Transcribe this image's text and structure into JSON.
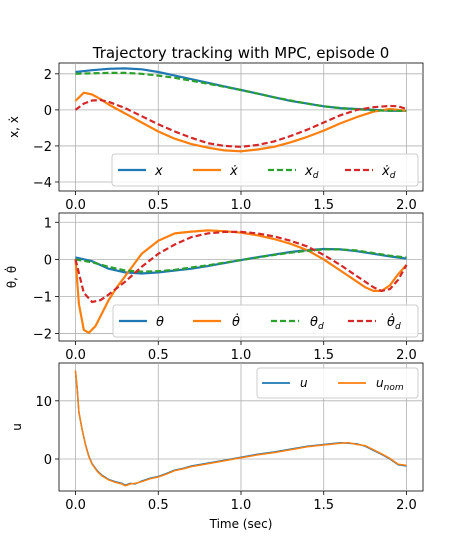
{
  "title": "Trajectory tracking with MPC, episode 0",
  "chart_data": [
    {
      "type": "line",
      "title": "Trajectory tracking with MPC, episode 0",
      "xlabel": "",
      "ylabel": "x, ẋ",
      "xlim": [
        -0.1,
        2.1
      ],
      "ylim": [
        -4.5,
        2.6
      ],
      "xticks": [
        0.0,
        0.5,
        1.0,
        1.5,
        2.0
      ],
      "xtick_labels": [
        "0.0",
        "0.5",
        "1.0",
        "1.5",
        "2.0"
      ],
      "yticks": [
        -4,
        -2,
        0,
        2
      ],
      "ytick_labels": [
        "−4",
        "−2",
        "0",
        "2"
      ],
      "grid": true,
      "legend_position": "lower-right",
      "series": [
        {
          "name": "x",
          "color": "#1f77b4",
          "dash": "solid",
          "x": [
            0,
            0.1,
            0.2,
            0.3,
            0.4,
            0.5,
            0.6,
            0.7,
            0.8,
            0.9,
            1.0,
            1.1,
            1.2,
            1.3,
            1.4,
            1.5,
            1.6,
            1.7,
            1.8,
            1.9,
            2.0
          ],
          "y": [
            2.1,
            2.2,
            2.28,
            2.3,
            2.25,
            2.1,
            1.9,
            1.7,
            1.5,
            1.3,
            1.1,
            0.9,
            0.7,
            0.5,
            0.35,
            0.2,
            0.1,
            0.05,
            0.0,
            -0.05,
            -0.05
          ]
        },
        {
          "name": "ẋ",
          "color": "#ff7f0e",
          "dash": "solid",
          "x": [
            0,
            0.05,
            0.1,
            0.15,
            0.2,
            0.3,
            0.4,
            0.5,
            0.6,
            0.7,
            0.8,
            0.9,
            1.0,
            1.1,
            1.2,
            1.3,
            1.4,
            1.5,
            1.6,
            1.7,
            1.8,
            1.9,
            2.0
          ],
          "y": [
            0.5,
            0.95,
            0.85,
            0.6,
            0.3,
            -0.2,
            -0.7,
            -1.2,
            -1.6,
            -1.9,
            -2.1,
            -2.25,
            -2.3,
            -2.2,
            -2.05,
            -1.8,
            -1.5,
            -1.15,
            -0.75,
            -0.4,
            -0.1,
            0.05,
            -0.05
          ]
        },
        {
          "name": "x_d",
          "color": "#2ca02c",
          "dash": "dashed",
          "x": [
            0,
            0.1,
            0.2,
            0.3,
            0.4,
            0.5,
            0.6,
            0.7,
            0.8,
            0.9,
            1.0,
            1.1,
            1.2,
            1.3,
            1.4,
            1.5,
            1.6,
            1.7,
            1.8,
            1.9,
            2.0
          ],
          "y": [
            2.0,
            2.03,
            2.05,
            2.05,
            2.0,
            1.9,
            1.78,
            1.62,
            1.45,
            1.28,
            1.1,
            0.9,
            0.7,
            0.52,
            0.35,
            0.2,
            0.1,
            0.03,
            -0.02,
            -0.05,
            -0.05
          ]
        },
        {
          "name": "ẋ_d",
          "color": "#d62728",
          "dash": "dashed",
          "x": [
            0,
            0.05,
            0.1,
            0.15,
            0.2,
            0.3,
            0.4,
            0.5,
            0.6,
            0.7,
            0.8,
            0.9,
            1.0,
            1.1,
            1.2,
            1.3,
            1.4,
            1.5,
            1.6,
            1.7,
            1.8,
            1.9,
            1.95,
            2.0
          ],
          "y": [
            0.0,
            0.35,
            0.52,
            0.55,
            0.45,
            0.1,
            -0.35,
            -0.8,
            -1.2,
            -1.55,
            -1.85,
            -2.0,
            -2.05,
            -1.95,
            -1.75,
            -1.45,
            -1.1,
            -0.7,
            -0.3,
            0.0,
            0.15,
            0.22,
            0.2,
            0.05
          ]
        }
      ]
    },
    {
      "type": "line",
      "title": "",
      "xlabel": "",
      "ylabel": "θ, θ̇",
      "xlim": [
        -0.1,
        2.1
      ],
      "ylim": [
        -2.2,
        1.25
      ],
      "xticks": [
        0.0,
        0.5,
        1.0,
        1.5,
        2.0
      ],
      "xtick_labels": [
        "0.0",
        "0.5",
        "1.0",
        "1.5",
        "2.0"
      ],
      "yticks": [
        -2,
        -1,
        0,
        1
      ],
      "ytick_labels": [
        "−2",
        "−1",
        "0",
        "1"
      ],
      "grid": true,
      "legend_position": "lower-right",
      "series": [
        {
          "name": "θ",
          "color": "#1f77b4",
          "dash": "solid",
          "x": [
            0,
            0.1,
            0.2,
            0.3,
            0.4,
            0.5,
            0.6,
            0.7,
            0.8,
            0.9,
            1.0,
            1.1,
            1.2,
            1.3,
            1.4,
            1.5,
            1.6,
            1.7,
            1.8,
            1.9,
            2.0
          ],
          "y": [
            0.05,
            -0.05,
            -0.25,
            -0.35,
            -0.38,
            -0.35,
            -0.3,
            -0.25,
            -0.18,
            -0.1,
            -0.02,
            0.06,
            0.13,
            0.2,
            0.25,
            0.28,
            0.27,
            0.22,
            0.15,
            0.08,
            0.02
          ]
        },
        {
          "name": "θ̇",
          "color": "#ff7f0e",
          "dash": "solid",
          "x": [
            0,
            0.02,
            0.05,
            0.08,
            0.12,
            0.16,
            0.2,
            0.25,
            0.3,
            0.35,
            0.4,
            0.5,
            0.6,
            0.7,
            0.8,
            0.9,
            1.0,
            1.1,
            1.2,
            1.3,
            1.4,
            1.5,
            1.6,
            1.7,
            1.75,
            1.8,
            1.85,
            1.9,
            1.95,
            2.0
          ],
          "y": [
            0.0,
            -1.2,
            -1.9,
            -1.98,
            -1.8,
            -1.45,
            -1.1,
            -0.75,
            -0.45,
            -0.15,
            0.15,
            0.5,
            0.7,
            0.75,
            0.78,
            0.76,
            0.72,
            0.65,
            0.55,
            0.42,
            0.25,
            0.0,
            -0.3,
            -0.6,
            -0.75,
            -0.85,
            -0.85,
            -0.7,
            -0.4,
            -0.15
          ]
        },
        {
          "name": "θ_d",
          "color": "#2ca02c",
          "dash": "dashed",
          "x": [
            0,
            0.1,
            0.2,
            0.3,
            0.4,
            0.5,
            0.6,
            0.7,
            0.8,
            0.9,
            1.0,
            1.1,
            1.2,
            1.3,
            1.4,
            1.5,
            1.6,
            1.7,
            1.8,
            1.9,
            2.0
          ],
          "y": [
            0.0,
            -0.08,
            -0.2,
            -0.3,
            -0.33,
            -0.32,
            -0.28,
            -0.22,
            -0.16,
            -0.09,
            -0.02,
            0.05,
            0.12,
            0.18,
            0.23,
            0.27,
            0.27,
            0.24,
            0.17,
            0.1,
            0.05
          ]
        },
        {
          "name": "θ̇_d",
          "color": "#d62728",
          "dash": "dashed",
          "x": [
            0,
            0.05,
            0.1,
            0.15,
            0.2,
            0.3,
            0.4,
            0.5,
            0.6,
            0.7,
            0.8,
            0.9,
            1.0,
            1.1,
            1.2,
            1.3,
            1.4,
            1.5,
            1.6,
            1.7,
            1.8,
            1.85,
            1.9,
            1.95,
            2.0
          ],
          "y": [
            0.0,
            -0.9,
            -1.15,
            -1.1,
            -0.95,
            -0.6,
            -0.2,
            0.15,
            0.4,
            0.6,
            0.7,
            0.74,
            0.74,
            0.7,
            0.62,
            0.5,
            0.35,
            0.12,
            -0.15,
            -0.45,
            -0.75,
            -0.85,
            -0.8,
            -0.55,
            -0.15
          ]
        }
      ]
    },
    {
      "type": "line",
      "title": "",
      "xlabel": "Time (sec)",
      "ylabel": "u",
      "xlim": [
        -0.1,
        2.1
      ],
      "ylim": [
        -5.5,
        16.5
      ],
      "xticks": [
        0.0,
        0.5,
        1.0,
        1.5,
        2.0
      ],
      "xtick_labels": [
        "0.0",
        "0.5",
        "1.0",
        "1.5",
        "2.0"
      ],
      "yticks": [
        0,
        10
      ],
      "ytick_labels": [
        "0",
        "10"
      ],
      "grid": true,
      "legend_position": "upper-right",
      "series": [
        {
          "name": "u",
          "color": "#1f77b4",
          "dash": "solid",
          "x": [
            0,
            0.01,
            0.02,
            0.04,
            0.06,
            0.08,
            0.1,
            0.13,
            0.16,
            0.2,
            0.24,
            0.28,
            0.3,
            0.33,
            0.36,
            0.4,
            0.45,
            0.5,
            0.55,
            0.6,
            0.65,
            0.7,
            0.8,
            0.9,
            1.0,
            1.1,
            1.2,
            1.3,
            1.4,
            1.5,
            1.6,
            1.65,
            1.7,
            1.75,
            1.8,
            1.85,
            1.9,
            1.95,
            2.0
          ],
          "y": [
            15.0,
            12.0,
            8.0,
            5.0,
            2.5,
            0.5,
            -0.8,
            -2.0,
            -2.8,
            -3.5,
            -3.9,
            -4.2,
            -4.5,
            -4.2,
            -4.3,
            -3.8,
            -3.3,
            -3.0,
            -2.5,
            -1.9,
            -1.6,
            -1.2,
            -0.7,
            -0.2,
            0.3,
            0.8,
            1.2,
            1.7,
            2.2,
            2.5,
            2.8,
            2.7,
            2.6,
            2.2,
            1.5,
            0.8,
            0.0,
            -1.0,
            -1.2
          ]
        },
        {
          "name": "u_nom",
          "color": "#ff7f0e",
          "dash": "solid",
          "x": [
            0,
            0.01,
            0.02,
            0.04,
            0.06,
            0.08,
            0.1,
            0.13,
            0.16,
            0.2,
            0.24,
            0.28,
            0.3,
            0.33,
            0.36,
            0.4,
            0.45,
            0.5,
            0.55,
            0.6,
            0.65,
            0.7,
            0.8,
            0.9,
            1.0,
            1.1,
            1.2,
            1.3,
            1.4,
            1.5,
            1.6,
            1.65,
            1.7,
            1.75,
            1.8,
            1.85,
            1.9,
            1.95,
            2.0
          ],
          "y": [
            15.2,
            12.1,
            8.1,
            5.0,
            2.4,
            0.4,
            -0.9,
            -2.1,
            -2.9,
            -3.6,
            -4.0,
            -4.3,
            -4.6,
            -4.3,
            -4.2,
            -3.9,
            -3.4,
            -3.1,
            -2.6,
            -2.0,
            -1.7,
            -1.3,
            -0.8,
            -0.3,
            0.2,
            0.7,
            1.1,
            1.6,
            2.1,
            2.4,
            2.7,
            2.8,
            2.5,
            2.3,
            1.6,
            0.9,
            0.1,
            -0.9,
            -1.1
          ]
        }
      ]
    }
  ]
}
